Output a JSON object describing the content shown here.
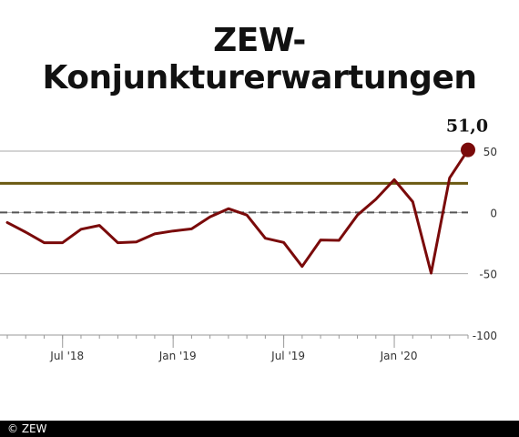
{
  "chart_data": {
    "type": "line",
    "title": "ZEW-Konjunkturerwartungen",
    "x": [
      "2018-04",
      "2018-05",
      "2018-06",
      "2018-07",
      "2018-08",
      "2018-09",
      "2018-10",
      "2018-11",
      "2018-12",
      "2019-01",
      "2019-02",
      "2019-03",
      "2019-04",
      "2019-05",
      "2019-06",
      "2019-07",
      "2019-08",
      "2019-09",
      "2019-10",
      "2019-11",
      "2019-12",
      "2020-01",
      "2020-02",
      "2020-03",
      "2020-04",
      "2020-05"
    ],
    "series": [
      {
        "values": [
          -8.2,
          -16.1,
          -24.7,
          -24.7,
          -13.7,
          -10.6,
          -24.7,
          -24.1,
          -17.5,
          -15.1,
          -13.4,
          -3.6,
          3.1,
          -2.1,
          -21.1,
          -24.5,
          -44.1,
          -22.5,
          -22.8,
          -2.1,
          10.7,
          26.7,
          8.7,
          -49.5,
          28.2,
          51.0
        ]
      }
    ],
    "yticks": [
      50,
      0,
      -50,
      -100
    ],
    "ytick_labels": [
      "50",
      "0",
      "-50",
      "-100"
    ],
    "xticks": [
      {
        "x": "2018-07",
        "label": "Jul '18"
      },
      {
        "x": "2019-01",
        "label": "Jan '19"
      },
      {
        "x": "2019-07",
        "label": "Jul '19"
      },
      {
        "x": "2020-01",
        "label": "Jan '20"
      }
    ],
    "ylim": [
      -100,
      55
    ],
    "reference_lines": [
      {
        "y": 0,
        "style": "dashed"
      },
      {
        "y": 23.7,
        "style": "solid"
      }
    ],
    "last_value_label": "51,0",
    "colors": {
      "line": "#7a0a0a",
      "average": "#6b5a12",
      "zero": "#555555",
      "grid": "#aaaaaa",
      "tick_text": "#333333"
    },
    "grid": true
  },
  "footer": {
    "credit": "© ZEW"
  }
}
